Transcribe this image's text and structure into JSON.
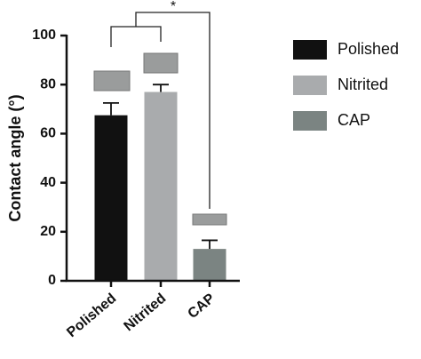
{
  "chart_data": {
    "type": "bar",
    "ylabel": "Contact angle (°)",
    "categories": [
      "Polished",
      "Nitrited",
      "CAP"
    ],
    "values": [
      67.5,
      77,
      13
    ],
    "errors": [
      5,
      3,
      3.5
    ],
    "colors": [
      "#111111",
      "#a9abad",
      "#7b8482"
    ],
    "ylim": [
      0,
      100
    ],
    "yticks": [
      0,
      20,
      40,
      60,
      80,
      100
    ],
    "annotation": "*"
  }
}
